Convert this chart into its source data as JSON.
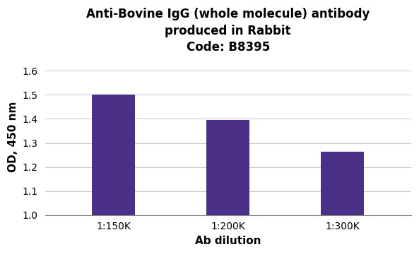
{
  "title_line1": "Anti-Bovine IgG (whole molecule) antibody",
  "title_line2": "produced in Rabbit",
  "title_line3": "Code: B8395",
  "categories": [
    "1:150K",
    "1:200K",
    "1:300K"
  ],
  "values": [
    1.5,
    1.395,
    1.262
  ],
  "bar_color": "#4B3088",
  "xlabel": "Ab dilution",
  "ylabel": "OD, 450 nm",
  "ylim": [
    1.0,
    1.65
  ],
  "yticks": [
    1.0,
    1.1,
    1.2,
    1.3,
    1.4,
    1.5,
    1.6
  ],
  "background_color": "#ffffff",
  "title_fontsize": 12,
  "axis_label_fontsize": 11,
  "tick_fontsize": 10,
  "bar_width": 0.38,
  "grid_color": "#cccccc",
  "spine_color": "#888888"
}
